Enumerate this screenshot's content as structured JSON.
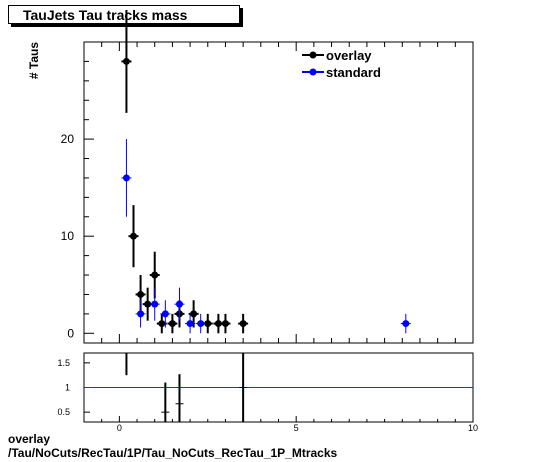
{
  "title": "TauJets Tau tracks mass",
  "footer": {
    "line1": "overlay",
    "line2": "/Tau/NoCuts/RecTau/1P/Tau_NoCuts_RecTau_1P_Mtracks"
  },
  "chart_data": [
    {
      "type": "scatter",
      "ylabel": "# Taus",
      "xlim": [
        -1,
        10
      ],
      "ylim": [
        -1,
        30
      ],
      "x_ticks": [
        0,
        5,
        10
      ],
      "y_ticks": [
        0,
        10,
        20
      ],
      "legend": {
        "position": "top-right",
        "entries": [
          "overlay",
          "standard"
        ]
      },
      "series": [
        {
          "name": "overlay",
          "color": "#000000",
          "points": [
            {
              "x": 0.2,
              "y": 28,
              "err": 5.3
            },
            {
              "x": 0.4,
              "y": 10,
              "err": 3.2
            },
            {
              "x": 0.6,
              "y": 4,
              "err": 2
            },
            {
              "x": 0.8,
              "y": 3,
              "err": 1.7
            },
            {
              "x": 1.0,
              "y": 6,
              "err": 2.4
            },
            {
              "x": 1.2,
              "y": 1,
              "err": 1
            },
            {
              "x": 1.5,
              "y": 1,
              "err": 1
            },
            {
              "x": 1.7,
              "y": 2,
              "err": 1.4
            },
            {
              "x": 2.1,
              "y": 2,
              "err": 1.4
            },
            {
              "x": 2.5,
              "y": 1,
              "err": 1
            },
            {
              "x": 2.8,
              "y": 1,
              "err": 1
            },
            {
              "x": 3.0,
              "y": 1,
              "err": 1
            },
            {
              "x": 3.5,
              "y": 1,
              "err": 1
            }
          ]
        },
        {
          "name": "standard",
          "color": "#0000ff",
          "points": [
            {
              "x": 0.2,
              "y": 16,
              "err": 4
            },
            {
              "x": 0.6,
              "y": 2,
              "err": 1.4
            },
            {
              "x": 1.0,
              "y": 3,
              "err": 1.7
            },
            {
              "x": 1.3,
              "y": 2,
              "err": 1.4
            },
            {
              "x": 1.7,
              "y": 3,
              "err": 1.7
            },
            {
              "x": 2.0,
              "y": 1,
              "err": 1
            },
            {
              "x": 2.3,
              "y": 1,
              "err": 1
            },
            {
              "x": 8.1,
              "y": 1,
              "err": 1
            }
          ]
        }
      ]
    },
    {
      "type": "scatter",
      "xlim": [
        -1,
        10
      ],
      "ylim": [
        0.3,
        1.7
      ],
      "x_ticks": [
        0,
        5,
        10
      ],
      "y_ticks": [
        0.5,
        1,
        1.5
      ],
      "reference_line": 1,
      "reference_color": "#cc0000",
      "points": [
        {
          "x": 0.2,
          "y": 1.75,
          "err": 0.5
        },
        {
          "x": 1.3,
          "y": 0.5,
          "err": 0.6
        },
        {
          "x": 1.7,
          "y": 0.67,
          "err": 0.6
        },
        {
          "x": 3.5,
          "y": 1.0,
          "err": 1.0
        }
      ]
    }
  ]
}
